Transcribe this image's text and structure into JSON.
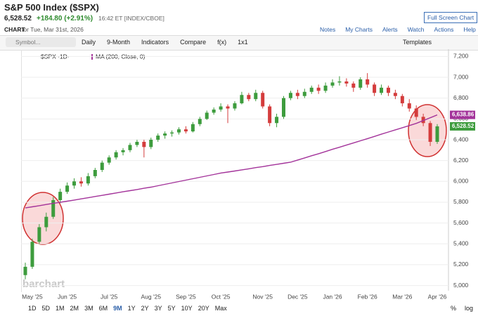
{
  "header": {
    "title": "S&P 500 Index ($SPX)",
    "price": "6,528.52",
    "change": "+184.80 (+2.91%)",
    "time": "16:42 ET [INDEX/CBOE]",
    "fullscreen": "Full Screen Chart",
    "chart_word": "CHART",
    "chart_date": "for Tue, Mar 31st, 2026",
    "links": [
      "Notes",
      "My Charts",
      "Alerts",
      "Watch",
      "Actions",
      "Help"
    ]
  },
  "toolbar": {
    "symbol": "Symbol...",
    "items": [
      "Daily",
      "9-Month",
      "Indicators",
      "Compare",
      "f(x)",
      "1x1"
    ],
    "templates": "Templates"
  },
  "legend": {
    "symbol": "$SPX ·1D·",
    "ma": "MA (200, Close, 0)"
  },
  "watermark": "barchart",
  "periods": [
    "1D",
    "5D",
    "1M",
    "2M",
    "3M",
    "6M",
    "9M",
    "1Y",
    "2Y",
    "3Y",
    "5Y",
    "10Y",
    "20Y",
    "Max"
  ],
  "active_period": "9M",
  "footer_right": [
    "%",
    "log"
  ],
  "chart_data": {
    "type": "candlestick",
    "categories": [
      null,
      "May '25",
      null,
      null,
      null,
      null,
      "Jun '25",
      null,
      null,
      null,
      null,
      null,
      "Jul '25",
      null,
      null,
      null,
      null,
      null,
      "Aug '25",
      null,
      null,
      null,
      null,
      "Sep '25",
      null,
      null,
      null,
      null,
      "Oct '25",
      null,
      null,
      null,
      null,
      null,
      "Nov '25",
      null,
      null,
      null,
      null,
      "Dec '25",
      null,
      null,
      null,
      null,
      "Jan '26",
      null,
      null,
      null,
      null,
      "Feb '26",
      null,
      null,
      null,
      null,
      "Mar '26",
      null,
      null,
      null,
      null,
      "Apr '26"
    ],
    "open": [
      5100,
      5180,
      5420,
      5560,
      5660,
      5820,
      5900,
      5960,
      6000,
      5980,
      6050,
      6110,
      6180,
      6230,
      6280,
      6300,
      6350,
      6380,
      6330,
      6400,
      6440,
      6460,
      6470,
      6500,
      6480,
      6550,
      6600,
      6660,
      6690,
      6720,
      6700,
      6750,
      6830,
      6790,
      6850,
      6720,
      6560,
      6620,
      6800,
      6850,
      6820,
      6860,
      6900,
      6870,
      6920,
      6950,
      6960,
      6940,
      6900,
      6980,
      6930,
      6850,
      6900,
      6850,
      6820,
      6750,
      6700,
      6620,
      6560,
      6380
    ],
    "high": [
      5220,
      5450,
      5590,
      5700,
      5850,
      5930,
      5990,
      6030,
      6040,
      6080,
      6130,
      6200,
      6250,
      6300,
      6320,
      6370,
      6400,
      6400,
      6420,
      6460,
      6480,
      6490,
      6520,
      6530,
      6570,
      6620,
      6680,
      6710,
      6750,
      6740,
      6770,
      6860,
      6850,
      6880,
      6870,
      6740,
      6650,
      6820,
      6870,
      6880,
      6890,
      6920,
      6930,
      6950,
      6980,
      7010,
      6990,
      6960,
      7000,
      7040,
      6950,
      6930,
      6920,
      6880,
      6840,
      6790,
      6730,
      6650,
      6580,
      6550
    ],
    "low": [
      5060,
      5160,
      5400,
      5520,
      5640,
      5790,
      5880,
      5930,
      5950,
      5960,
      6030,
      6090,
      6160,
      6210,
      6250,
      6280,
      6330,
      6230,
      6310,
      6380,
      6410,
      6430,
      6450,
      6460,
      6470,
      6530,
      6590,
      6640,
      6670,
      6560,
      6680,
      6740,
      6770,
      6770,
      6700,
      6530,
      6520,
      6600,
      6780,
      6790,
      6800,
      6840,
      6840,
      6850,
      6900,
      6920,
      6910,
      6860,
      6880,
      6900,
      6820,
      6830,
      6820,
      6790,
      6720,
      6670,
      6590,
      6530,
      6340,
      6360
    ],
    "close": [
      5180,
      5420,
      5560,
      5660,
      5820,
      5900,
      5960,
      6000,
      5980,
      6050,
      6110,
      6180,
      6230,
      6280,
      6300,
      6350,
      6380,
      6330,
      6400,
      6440,
      6460,
      6470,
      6500,
      6480,
      6550,
      6600,
      6660,
      6690,
      6720,
      6700,
      6750,
      6830,
      6790,
      6850,
      6720,
      6560,
      6620,
      6800,
      6850,
      6820,
      6860,
      6900,
      6870,
      6920,
      6950,
      6960,
      6940,
      6900,
      6980,
      6930,
      6850,
      6900,
      6850,
      6820,
      6750,
      6700,
      6620,
      6560,
      6380,
      6528.52
    ],
    "up_color": "#3d9c3d",
    "down_color": "#d43c3c",
    "ma": {
      "name": "MA (200, Close, 0)",
      "color": "#a3339a",
      "values": [
        5745,
        5756,
        5767,
        5778,
        5789,
        5800,
        5810,
        5821,
        5832,
        5843,
        5855,
        5866,
        5877,
        5889,
        5900,
        5911,
        5922,
        5934,
        5945,
        5958,
        5972,
        5985,
        5999,
        6012,
        6026,
        6039,
        6053,
        6066,
        6080,
        6090,
        6100,
        6111,
        6121,
        6132,
        6142,
        6153,
        6163,
        6174,
        6184,
        6205,
        6225,
        6246,
        6266,
        6287,
        6308,
        6328,
        6349,
        6369,
        6390,
        6411,
        6432,
        6453,
        6474,
        6495,
        6515,
        6536,
        6557,
        6584,
        6611,
        6638.86
      ]
    },
    "ma_label": "6,638.86",
    "close_label": "6,528.52",
    "ylim": [
      4950,
      7270
    ],
    "yticks": [
      {
        "value": 5000,
        "label": "5,000"
      },
      {
        "value": 5200,
        "label": "5,200"
      },
      {
        "value": 5400,
        "label": "5,400"
      },
      {
        "value": 5600,
        "label": "5,600"
      },
      {
        "value": 5800,
        "label": "5,800"
      },
      {
        "value": 6000,
        "label": "6,000"
      },
      {
        "value": 6200,
        "label": "6,200"
      },
      {
        "value": 6400,
        "label": "6,400"
      },
      {
        "value": 6600,
        "label": "6,600"
      },
      {
        "value": 6800,
        "label": "6,800"
      },
      {
        "value": 7000,
        "label": "7,000"
      },
      {
        "value": 7200,
        "label": "7,200"
      }
    ],
    "grid": true
  }
}
